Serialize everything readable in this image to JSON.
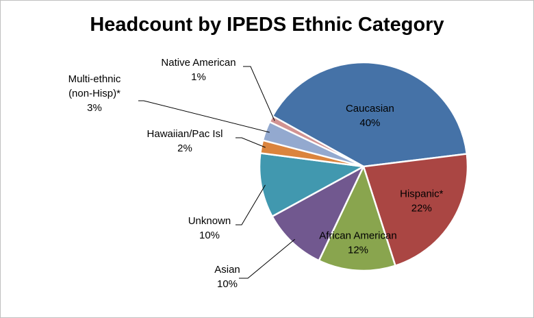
{
  "chart_data": {
    "type": "pie",
    "title": "Headcount by IPEDS Ethnic Category",
    "slices": [
      {
        "name": "Caucasian",
        "label_lines": [
          "Caucasian"
        ],
        "value_label": "40%",
        "value": 40,
        "color": "#4572A7",
        "label_inside": true
      },
      {
        "name": "Hispanic*",
        "label_lines": [
          "Hispanic*"
        ],
        "value_label": "22%",
        "value": 22,
        "color": "#AA4643",
        "label_inside": true
      },
      {
        "name": "African American",
        "label_lines": [
          "African American"
        ],
        "value_label": "12%",
        "value": 12,
        "color": "#89A54E",
        "label_inside": true
      },
      {
        "name": "Asian",
        "label_lines": [
          "Asian"
        ],
        "value_label": "10%",
        "value": 10,
        "color": "#71588F",
        "label_inside": false
      },
      {
        "name": "Unknown",
        "label_lines": [
          "Unknown"
        ],
        "value_label": "10%",
        "value": 10,
        "color": "#4198AF",
        "label_inside": false
      },
      {
        "name": "Hawaiian/Pac Isl",
        "label_lines": [
          "Hawaiian/Pac Isl"
        ],
        "value_label": "2%",
        "value": 2,
        "color": "#DB843D",
        "label_inside": false
      },
      {
        "name": "Multi-ethnic (non-Hisp)*",
        "label_lines": [
          "Multi-ethnic",
          "(non-Hisp)*"
        ],
        "value_label": "3%",
        "value": 3,
        "color": "#93A9CF",
        "label_inside": false
      },
      {
        "name": "Native American",
        "label_lines": [
          "Native American"
        ],
        "value_label": "1%",
        "value": 1,
        "color": "#D19392",
        "label_inside": false
      }
    ],
    "legend": "none"
  }
}
